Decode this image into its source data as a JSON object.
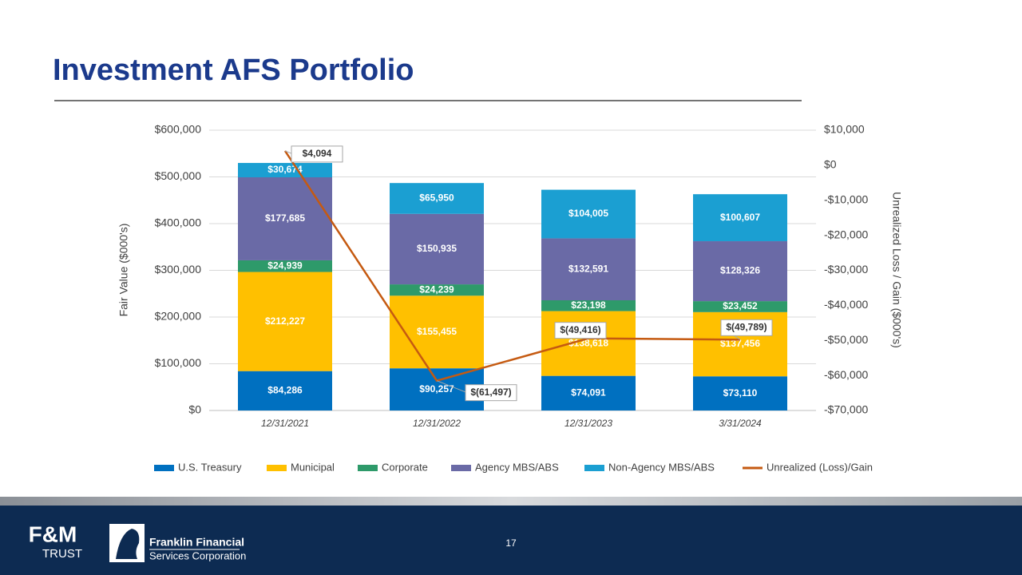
{
  "chart_data": {
    "type": "stacked-bar-line",
    "title": "Investment AFS Portfolio",
    "ylabel": "Fair Value ($000's)",
    "y2label": "Unrealized Loss / Gain ($000's)",
    "categories": [
      "12/31/2021",
      "12/31/2022",
      "12/31/2023",
      "3/31/2024"
    ],
    "ylim": [
      0,
      600000
    ],
    "yticks": [
      {
        "value": 0,
        "label": "$0"
      },
      {
        "value": 100000,
        "label": "$100,000"
      },
      {
        "value": 200000,
        "label": "$200,000"
      },
      {
        "value": 300000,
        "label": "$300,000"
      },
      {
        "value": 400000,
        "label": "$400,000"
      },
      {
        "value": 500000,
        "label": "$500,000"
      },
      {
        "value": 600000,
        "label": "$600,000"
      }
    ],
    "y2lim": [
      -70000,
      10000
    ],
    "y2ticks": [
      {
        "value": -70000,
        "label": "-$70,000"
      },
      {
        "value": -60000,
        "label": "-$60,000"
      },
      {
        "value": -50000,
        "label": "-$50,000"
      },
      {
        "value": -40000,
        "label": "-$40,000"
      },
      {
        "value": -30000,
        "label": "-$30,000"
      },
      {
        "value": -20000,
        "label": "-$20,000"
      },
      {
        "value": -10000,
        "label": "-$10,000"
      },
      {
        "value": 0,
        "label": "$0"
      },
      {
        "value": 10000,
        "label": "$10,000"
      }
    ],
    "grid": true,
    "legend": "bottom",
    "series": [
      {
        "name": "U.S. Treasury",
        "color": "#0070c0",
        "values": [
          84286,
          90257,
          74091,
          73110
        ],
        "value_labels": [
          "$84,286",
          "$90,257",
          "$74,091",
          "$73,110"
        ]
      },
      {
        "name": "Municipal",
        "color": "#ffc000",
        "values": [
          212227,
          155455,
          138618,
          137456
        ],
        "value_labels": [
          "$212,227",
          "$155,455",
          "$138,618",
          "$137,456"
        ]
      },
      {
        "name": "Corporate",
        "color": "#2e9a6a",
        "values": [
          24939,
          24239,
          23198,
          23452
        ],
        "value_labels": [
          "$24,939",
          "$24,239",
          "$23,198",
          "$23,452"
        ]
      },
      {
        "name": "Agency MBS/ABS",
        "color": "#6a6aa6",
        "values": [
          177685,
          150935,
          132591,
          128326
        ],
        "value_labels": [
          "$177,685",
          "$150,935",
          "$132,591",
          "$128,326"
        ]
      },
      {
        "name": "Non-Agency MBS/ABS",
        "color": "#1b9fd2",
        "values": [
          30674,
          65950,
          104005,
          100607
        ],
        "value_labels": [
          "$30,674",
          "$65,950",
          "$104,005",
          "$100,607"
        ]
      },
      {
        "name": "Unrealized (Loss)/Gain",
        "color": "#c55a11",
        "axis": "y2",
        "type": "line",
        "values": [
          4094,
          -61497,
          -49416,
          -49789
        ],
        "value_labels": [
          "$4,094",
          "$(61,497)",
          "$(49,416)",
          "$(49,789)"
        ]
      }
    ]
  },
  "page_number": "17",
  "footer": {
    "logo1_top": "F&M",
    "logo1_bottom": "TRUST",
    "logo2_line1": "Franklin Financial",
    "logo2_line2": "Services Corporation"
  }
}
